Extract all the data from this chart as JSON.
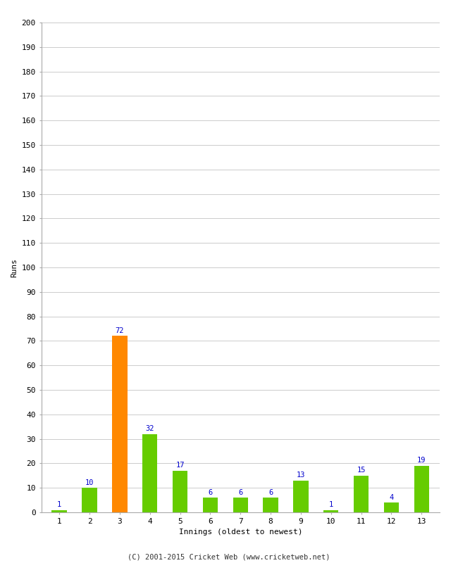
{
  "innings": [
    1,
    2,
    3,
    4,
    5,
    6,
    7,
    8,
    9,
    10,
    11,
    12,
    13
  ],
  "runs": [
    1,
    10,
    72,
    32,
    17,
    6,
    6,
    6,
    13,
    1,
    15,
    4,
    19
  ],
  "bar_colors": [
    "#66cc00",
    "#66cc00",
    "#ff8800",
    "#66cc00",
    "#66cc00",
    "#66cc00",
    "#66cc00",
    "#66cc00",
    "#66cc00",
    "#66cc00",
    "#66cc00",
    "#66cc00",
    "#66cc00"
  ],
  "xlabel": "Innings (oldest to newest)",
  "ylabel": "Runs",
  "ylim": [
    0,
    200
  ],
  "yticks": [
    0,
    10,
    20,
    30,
    40,
    50,
    60,
    70,
    80,
    90,
    100,
    110,
    120,
    130,
    140,
    150,
    160,
    170,
    180,
    190,
    200
  ],
  "label_color": "#0000cc",
  "footer": "(C) 2001-2015 Cricket Web (www.cricketweb.net)",
  "bg_color": "#ffffff",
  "grid_color": "#cccccc",
  "bar_edge_color": "none",
  "bar_width": 0.5,
  "label_fontsize": 7.5,
  "axis_tick_fontsize": 8,
  "xlabel_fontsize": 8,
  "ylabel_fontsize": 8,
  "footer_fontsize": 7.5
}
